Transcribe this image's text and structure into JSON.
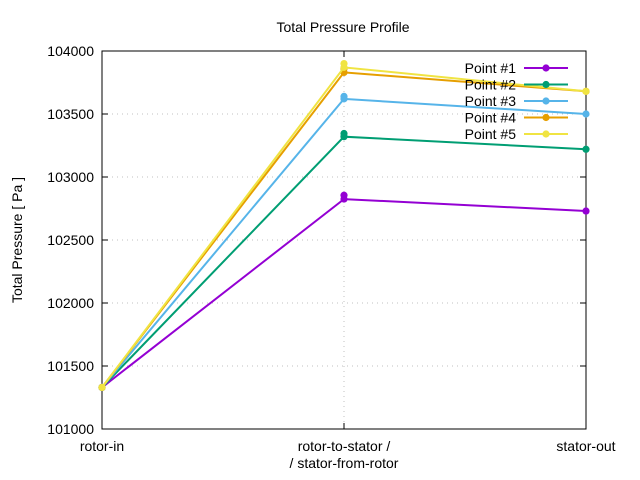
{
  "chart_data": {
    "type": "line",
    "title": "Total Pressure Profile",
    "xlabel": "",
    "ylabel": "Total Pressure [ Pa ]",
    "categories": [
      [
        "rotor-in"
      ],
      [
        "rotor-to-stator /",
        "/ stator-from-rotor"
      ],
      [
        "stator-out"
      ]
    ],
    "ylim": [
      101000,
      104000
    ],
    "yticks": [
      101000,
      101500,
      102000,
      102500,
      103000,
      103500,
      104000
    ],
    "grid": true,
    "legend_position": "top-right",
    "series": [
      {
        "name": "Point #1",
        "color": "#9400d3",
        "values": [
          101330,
          102825,
          102730
        ],
        "extra": [
          null,
          102855,
          null
        ]
      },
      {
        "name": "Point #2",
        "color": "#009e73",
        "values": [
          101330,
          103320,
          103220
        ],
        "extra": [
          null,
          103345,
          null
        ]
      },
      {
        "name": "Point #3",
        "color": "#56b4e9",
        "values": [
          101330,
          103620,
          103500
        ],
        "extra": [
          null,
          103640,
          null
        ]
      },
      {
        "name": "Point #4",
        "color": "#e69f00",
        "values": [
          101330,
          103830,
          103680
        ],
        "extra": [
          null,
          103860,
          null
        ]
      },
      {
        "name": "Point #5",
        "color": "#f0e442",
        "values": [
          101330,
          103870,
          103680
        ],
        "extra": [
          null,
          103900,
          null
        ]
      }
    ]
  }
}
